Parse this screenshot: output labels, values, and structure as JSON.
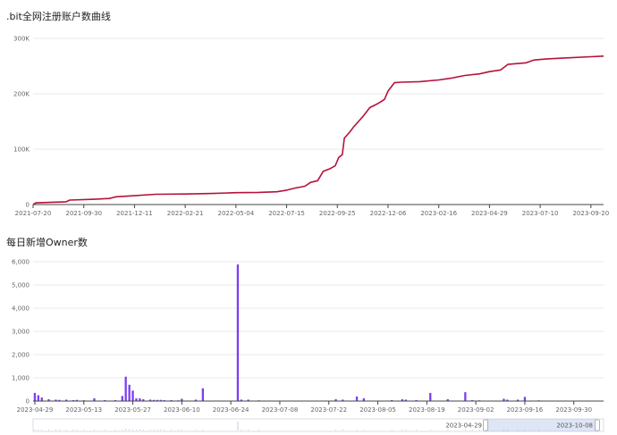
{
  "chart_data": [
    {
      "type": "line",
      "title": ".bit全网注册账户数曲线",
      "x_ticks": [
        "2021-07-20",
        "2021-09-30",
        "2021-12-11",
        "2022-02-21",
        "2022-05-04",
        "2022-07-15",
        "2022-09-25",
        "2022-12-06",
        "2023-02-16",
        "2023-04-29",
        "2023-07-10",
        "2023-09-20"
      ],
      "y_ticks": [
        "0",
        "100K",
        "200K",
        "300K"
      ],
      "ylim": [
        0,
        300000
      ],
      "x_range": [
        "2021-07-20",
        "2023-10-08"
      ],
      "grid": "horizontal",
      "color": "#b5123a",
      "series": [
        {
          "points": [
            [
              "2021-07-20",
              0
            ],
            [
              "2021-07-24",
              3000
            ],
            [
              "2021-09-05",
              5000
            ],
            [
              "2021-09-10",
              8000
            ],
            [
              "2021-10-15",
              9500
            ],
            [
              "2021-11-05",
              11000
            ],
            [
              "2021-11-15",
              14000
            ],
            [
              "2021-12-11",
              16000
            ],
            [
              "2022-01-10",
              18500
            ],
            [
              "2022-02-21",
              19000
            ],
            [
              "2022-04-01",
              20000
            ],
            [
              "2022-05-04",
              21500
            ],
            [
              "2022-06-05",
              22000
            ],
            [
              "2022-07-01",
              23000
            ],
            [
              "2022-07-15",
              26000
            ],
            [
              "2022-07-28",
              30000
            ],
            [
              "2022-08-10",
              33000
            ],
            [
              "2022-08-18",
              40000
            ],
            [
              "2022-08-28",
              43000
            ],
            [
              "2022-09-05",
              60000
            ],
            [
              "2022-09-15",
              65000
            ],
            [
              "2022-09-22",
              70000
            ],
            [
              "2022-09-27",
              85000
            ],
            [
              "2022-10-02",
              90000
            ],
            [
              "2022-10-05",
              120000
            ],
            [
              "2022-10-12",
              130000
            ],
            [
              "2022-10-18",
              140000
            ],
            [
              "2022-10-25",
              150000
            ],
            [
              "2022-11-01",
              160000
            ],
            [
              "2022-11-10",
              175000
            ],
            [
              "2022-11-18",
              180000
            ],
            [
              "2022-11-25",
              185000
            ],
            [
              "2022-12-01",
              190000
            ],
            [
              "2022-12-06",
              205000
            ],
            [
              "2022-12-15",
              220000
            ],
            [
              "2022-12-25",
              221000
            ],
            [
              "2023-01-20",
              222000
            ],
            [
              "2023-02-16",
              225000
            ],
            [
              "2023-03-05",
              228000
            ],
            [
              "2023-03-25",
              233000
            ],
            [
              "2023-04-15",
              236000
            ],
            [
              "2023-04-29",
              240000
            ],
            [
              "2023-05-15",
              243000
            ],
            [
              "2023-05-25",
              253000
            ],
            [
              "2023-06-20",
              256000
            ],
            [
              "2023-07-01",
              261000
            ],
            [
              "2023-07-20",
              263000
            ],
            [
              "2023-08-20",
              265000
            ],
            [
              "2023-09-20",
              267000
            ],
            [
              "2023-10-08",
              268000
            ]
          ]
        }
      ]
    },
    {
      "type": "bar",
      "title": "每日新增Owner数",
      "x_ticks": [
        "2023-04-29",
        "2023-05-13",
        "2023-05-27",
        "2023-06-10",
        "2023-06-24",
        "2023-07-08",
        "2023-07-22",
        "2023-08-05",
        "2023-08-19",
        "2023-09-02",
        "2023-09-16",
        "2023-09-30"
      ],
      "y_ticks": [
        "0",
        "1,000",
        "2,000",
        "3,000",
        "4,000",
        "5,000",
        "6,000"
      ],
      "ylim": [
        0,
        6000
      ],
      "x_range": [
        "2023-04-29",
        "2023-10-08"
      ],
      "grid": "horizontal",
      "color": "#7b3ff2",
      "bars": [
        [
          "2023-04-29",
          350
        ],
        [
          "2023-04-30",
          250
        ],
        [
          "2023-05-01",
          150
        ],
        [
          "2023-05-03",
          80
        ],
        [
          "2023-05-05",
          60
        ],
        [
          "2023-05-06",
          50
        ],
        [
          "2023-05-08",
          60
        ],
        [
          "2023-05-10",
          40
        ],
        [
          "2023-05-11",
          50
        ],
        [
          "2023-05-13",
          30
        ],
        [
          "2023-05-16",
          120
        ],
        [
          "2023-05-19",
          40
        ],
        [
          "2023-05-22",
          40
        ],
        [
          "2023-05-24",
          220
        ],
        [
          "2023-05-25",
          1050
        ],
        [
          "2023-05-26",
          700
        ],
        [
          "2023-05-27",
          450
        ],
        [
          "2023-05-28",
          120
        ],
        [
          "2023-05-29",
          120
        ],
        [
          "2023-05-30",
          80
        ],
        [
          "2023-06-01",
          60
        ],
        [
          "2023-06-02",
          50
        ],
        [
          "2023-06-03",
          50
        ],
        [
          "2023-06-04",
          50
        ],
        [
          "2023-06-05",
          40
        ],
        [
          "2023-06-07",
          40
        ],
        [
          "2023-06-09",
          30
        ],
        [
          "2023-06-10",
          100
        ],
        [
          "2023-06-14",
          60
        ],
        [
          "2023-06-16",
          550
        ],
        [
          "2023-06-26",
          5880
        ],
        [
          "2023-06-27",
          60
        ],
        [
          "2023-06-29",
          60
        ],
        [
          "2023-07-02",
          30
        ],
        [
          "2023-07-24",
          80
        ],
        [
          "2023-07-26",
          60
        ],
        [
          "2023-07-30",
          200
        ],
        [
          "2023-08-01",
          120
        ],
        [
          "2023-08-09",
          40
        ],
        [
          "2023-08-12",
          80
        ],
        [
          "2023-08-13",
          60
        ],
        [
          "2023-08-16",
          40
        ],
        [
          "2023-08-20",
          350
        ],
        [
          "2023-08-25",
          80
        ],
        [
          "2023-08-30",
          380
        ],
        [
          "2023-09-01",
          40
        ],
        [
          "2023-09-03",
          30
        ],
        [
          "2023-09-10",
          100
        ],
        [
          "2023-09-11",
          60
        ],
        [
          "2023-09-14",
          60
        ],
        [
          "2023-09-16",
          180
        ],
        [
          "2023-09-20",
          30
        ]
      ],
      "dataZoom": {
        "start": "2023-04-29",
        "end": "2023-10-08"
      }
    }
  ]
}
